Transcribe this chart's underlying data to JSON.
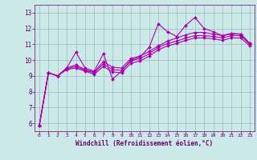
{
  "bg_color": "#cce8e8",
  "line_color": "#aa00aa",
  "xlabel": "Windchill (Refroidissement éolien,°C)",
  "x_ticks": [
    0,
    1,
    2,
    3,
    4,
    5,
    6,
    7,
    8,
    9,
    10,
    11,
    12,
    13,
    14,
    15,
    16,
    17,
    18,
    19,
    20,
    21,
    22,
    23
  ],
  "y_ticks": [
    6,
    7,
    8,
    9,
    10,
    11,
    12,
    13
  ],
  "ylim": [
    5.5,
    13.5
  ],
  "xlim": [
    -0.5,
    23.5
  ],
  "line1_x": [
    0,
    1,
    2,
    3,
    4,
    5,
    6,
    7,
    8,
    9,
    10,
    11,
    12,
    13,
    14,
    15,
    16,
    17,
    18,
    19,
    20,
    21,
    22,
    23
  ],
  "line1_y": [
    5.85,
    9.2,
    9.0,
    9.5,
    10.5,
    9.5,
    9.3,
    10.4,
    8.8,
    9.3,
    10.0,
    10.2,
    10.8,
    12.3,
    11.8,
    11.5,
    12.2,
    12.7,
    12.0,
    11.8,
    11.55,
    11.7,
    11.65,
    11.05
  ],
  "line2_x": [
    0,
    1,
    2,
    3,
    4,
    5,
    6,
    7,
    8,
    9,
    10,
    11,
    12,
    13,
    14,
    15,
    16,
    17,
    18,
    19,
    20,
    21,
    22,
    23
  ],
  "line2_y": [
    5.85,
    9.2,
    9.0,
    9.5,
    9.7,
    9.4,
    9.25,
    9.9,
    9.55,
    9.5,
    10.1,
    10.25,
    10.55,
    10.9,
    11.2,
    11.4,
    11.6,
    11.75,
    11.75,
    11.65,
    11.55,
    11.65,
    11.65,
    11.05
  ],
  "line3_x": [
    0,
    1,
    2,
    3,
    4,
    5,
    6,
    7,
    8,
    9,
    10,
    11,
    12,
    13,
    14,
    15,
    16,
    17,
    18,
    19,
    20,
    21,
    22,
    23
  ],
  "line3_y": [
    5.85,
    9.2,
    9.0,
    9.45,
    9.6,
    9.35,
    9.2,
    9.75,
    9.4,
    9.35,
    9.95,
    10.1,
    10.4,
    10.8,
    11.05,
    11.2,
    11.4,
    11.55,
    11.55,
    11.5,
    11.4,
    11.55,
    11.55,
    11.0
  ],
  "line4_x": [
    0,
    1,
    2,
    3,
    4,
    5,
    6,
    7,
    8,
    9,
    10,
    11,
    12,
    13,
    14,
    15,
    16,
    17,
    18,
    19,
    20,
    21,
    22,
    23
  ],
  "line4_y": [
    5.85,
    9.2,
    9.0,
    9.4,
    9.5,
    9.3,
    9.1,
    9.6,
    9.25,
    9.2,
    9.8,
    9.95,
    10.25,
    10.65,
    10.9,
    11.05,
    11.25,
    11.4,
    11.4,
    11.35,
    11.25,
    11.4,
    11.4,
    10.9
  ]
}
